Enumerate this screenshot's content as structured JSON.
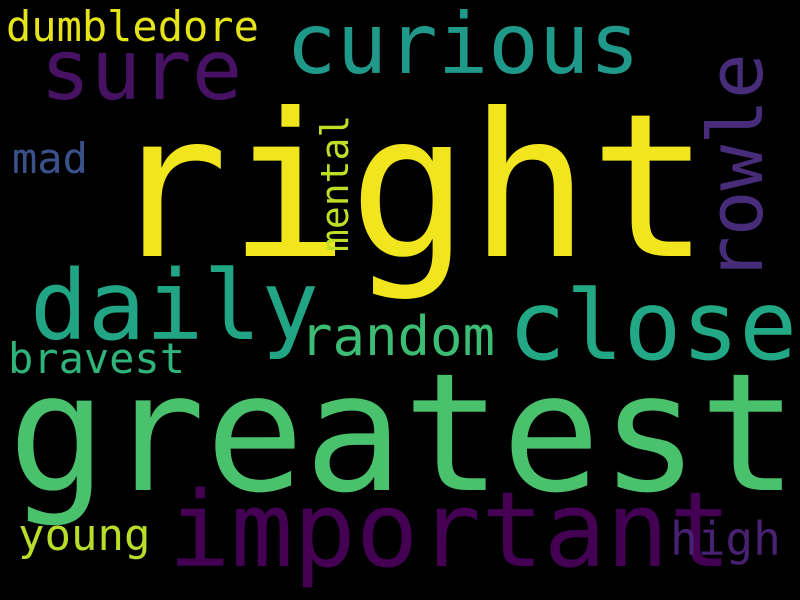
{
  "words": {
    "right": {
      "text": "right",
      "color": "#f1e51d"
    },
    "greatest": {
      "text": "greatest",
      "color": "#4ac16d"
    },
    "important": {
      "text": "important",
      "color": "#440154"
    },
    "daily": {
      "text": "daily",
      "color": "#21a585"
    },
    "close": {
      "text": "close",
      "color": "#22a884"
    },
    "curious": {
      "text": "curious",
      "color": "#1f9a8a"
    },
    "sure": {
      "text": "sure",
      "color": "#471164"
    },
    "rowle": {
      "text": "rowle",
      "color": "#472c7a"
    },
    "random": {
      "text": "random",
      "color": "#3dbc74"
    },
    "dumbledore": {
      "text": "dumbledore",
      "color": "#e5e419"
    },
    "mental": {
      "text": "mental",
      "color": "#bddf26"
    },
    "bravest": {
      "text": "bravest",
      "color": "#2fb47c"
    },
    "young": {
      "text": "young",
      "color": "#b8de29"
    },
    "high": {
      "text": "high",
      "color": "#482173"
    },
    "mad": {
      "text": "mad",
      "color": "#3b518b"
    }
  }
}
